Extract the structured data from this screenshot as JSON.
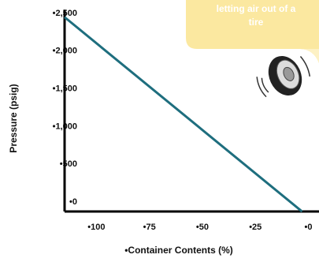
{
  "chart_data": {
    "type": "line",
    "annotation": [
      "letting air out of a",
      "tire"
    ],
    "x_label": "•Container Contents (%)",
    "y_label": "Pressure (psig)",
    "x": [
      115,
      3
    ],
    "series": [
      {
        "color": "#1e6e7e",
        "values": [
          2450,
          -125
        ]
      }
    ],
    "xlim": [
      115,
      -5
    ],
    "ylim": [
      -125,
      2550
    ],
    "xticks": [
      {
        "value": 100,
        "label": "•100"
      },
      {
        "value": 75,
        "label": "•75"
      },
      {
        "value": 50,
        "label": "•50"
      },
      {
        "value": 25,
        "label": "•25"
      },
      {
        "value": 0,
        "label": "•0"
      }
    ],
    "yticks": [
      {
        "value": 2500,
        "label": "•2,500"
      },
      {
        "value": 2000,
        "label": "•2,000"
      },
      {
        "value": 1500,
        "label": "•1,500"
      },
      {
        "value": 1000,
        "label": "•1,000"
      },
      {
        "value": 500,
        "label": "•500"
      },
      {
        "value": 0,
        "label": "•0"
      }
    ]
  }
}
